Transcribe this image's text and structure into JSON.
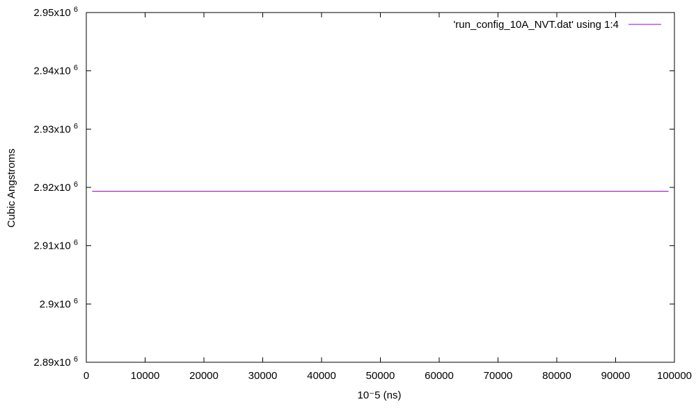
{
  "chart_data": {
    "type": "line",
    "xlabel": "10⁻5 (ns)",
    "ylabel": "Cubic Angstroms",
    "xlim": [
      0,
      100000
    ],
    "ylim": [
      2890000,
      2950000
    ],
    "x_ticks": [
      0,
      10000,
      20000,
      30000,
      40000,
      50000,
      60000,
      70000,
      80000,
      90000,
      100000
    ],
    "x_tick_labels": [
      "0",
      "10000",
      "20000",
      "30000",
      "40000",
      "50000",
      "60000",
      "70000",
      "80000",
      "90000",
      "100000"
    ],
    "y_ticks": [
      {
        "value": 2890000,
        "mantissa": "2.89x10",
        "exp": "6"
      },
      {
        "value": 2900000,
        "mantissa": "2.9x10",
        "exp": "6"
      },
      {
        "value": 2910000,
        "mantissa": "2.91x10",
        "exp": "6"
      },
      {
        "value": 2920000,
        "mantissa": "2.92x10",
        "exp": "6"
      },
      {
        "value": 2930000,
        "mantissa": "2.93x10",
        "exp": "6"
      },
      {
        "value": 2940000,
        "mantissa": "2.94x10",
        "exp": "6"
      },
      {
        "value": 2950000,
        "mantissa": "2.95x10",
        "exp": "6"
      }
    ],
    "grid": false,
    "legend_position": "top-right",
    "series": [
      {
        "name": "'run_config_10A_NVT.dat' using 1:4",
        "color": "#9400d3",
        "x": [
          1000,
          99000
        ],
        "y": [
          2919350,
          2919350
        ]
      }
    ]
  }
}
